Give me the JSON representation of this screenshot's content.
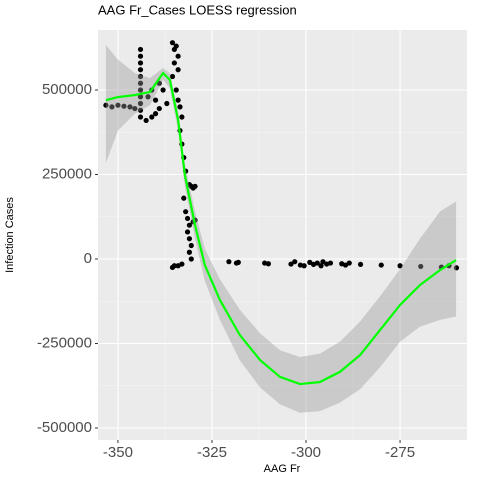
{
  "chart_data": {
    "type": "scatter",
    "title": "AAG Fr_Cases LOESS regression",
    "x_label": "AAG Fr",
    "y_label": "Infection Cases",
    "xlim": [
      -355.3,
      -257.2
    ],
    "ylim": [
      -535500,
      677500
    ],
    "xticks": [
      -350,
      -325,
      -300,
      -275
    ],
    "yticks": [
      -500000,
      -250000,
      0,
      250000,
      500000
    ],
    "grid": true,
    "points": {
      "color": "#000000",
      "x": [
        -353.2,
        -351.6,
        -350,
        -348.4,
        -346.8,
        -345.5,
        -344,
        -344,
        -344,
        -344,
        -344,
        -344,
        -344,
        -344,
        -344,
        -344,
        -344,
        -342.5,
        -341,
        -340,
        -339,
        -342,
        -341,
        -340,
        -339,
        -338,
        -337,
        -335.5,
        -335,
        -334.5,
        -334,
        -335,
        -334,
        -335.5,
        -334.5,
        -334,
        -333.5,
        -333,
        -333.5,
        -333,
        -332.5,
        -332,
        -331,
        -330.5,
        -330,
        -329.5,
        -332.5,
        -332,
        -331.5,
        -331,
        -330,
        -329.5,
        -331.5,
        -331,
        -330.5,
        -331,
        -330.5,
        -333,
        -334,
        -335.5,
        -335,
        -320.5,
        -318.5,
        -318,
        -311,
        -310,
        -304,
        -303,
        -301.5,
        -300.5,
        -299,
        -298,
        -297,
        -296,
        -295.5,
        -294.5,
        -293.5,
        -290.5,
        -289.5,
        -288.5,
        -285.5,
        -280,
        -275,
        -269.5,
        -264,
        -262,
        -260
      ],
      "y": [
        455000,
        450000,
        455000,
        452000,
        450000,
        445000,
        420000,
        440000,
        460000,
        480000,
        500000,
        520000,
        540000,
        560000,
        580000,
        600000,
        620000,
        410000,
        420000,
        430000,
        445000,
        480000,
        500000,
        470000,
        520000,
        500000,
        460000,
        640000,
        620000,
        630000,
        600000,
        580000,
        560000,
        540000,
        500000,
        470000,
        450000,
        420000,
        380000,
        340000,
        300000,
        260000,
        220000,
        215000,
        210000,
        215000,
        180000,
        140000,
        120000,
        100000,
        110000,
        115000,
        80000,
        60000,
        40000,
        20000,
        0,
        -15000,
        -20000,
        -25000,
        -20000,
        -8000,
        -12000,
        -10000,
        -12000,
        -14000,
        -15000,
        -8000,
        -18000,
        -20000,
        -10000,
        -16000,
        -12000,
        -20000,
        -8000,
        -15000,
        -12000,
        -14000,
        -18000,
        -12000,
        -16000,
        -18000,
        -20000,
        -22000,
        -24000,
        -20000,
        -26000
      ]
    },
    "loess": {
      "color": "#00ff00",
      "x": [
        -353.2,
        -350,
        -345.5,
        -341.5,
        -338,
        -336.2,
        -334,
        -332.2,
        -329.5,
        -326.9,
        -322.9,
        -317.6,
        -312.2,
        -306.9,
        -301.6,
        -296.3,
        -291,
        -285.6,
        -280.3,
        -275,
        -269.7,
        -264.4,
        -260.1
      ],
      "y": [
        470000,
        479000,
        485000,
        494000,
        550000,
        530000,
        411000,
        248000,
        100000,
        -18000,
        -121000,
        -225000,
        -299000,
        -349000,
        -370000,
        -364000,
        -334000,
        -284000,
        -210000,
        -136000,
        -77000,
        -33000,
        -3000
      ]
    },
    "band": {
      "color": "#999999",
      "x": [
        -353.2,
        -350,
        -345.5,
        -341.5,
        -338,
        -336.2,
        -334,
        -332.2,
        -329.5,
        -326.9,
        -322.9,
        -317.6,
        -312.2,
        -306.9,
        -301.6,
        -296.3,
        -291,
        -285.6,
        -280.3,
        -275,
        -269.7,
        -264.4,
        -260.1
      ],
      "upper": [
        633000,
        590000,
        550000,
        535000,
        565000,
        550000,
        440000,
        280000,
        140000,
        30000,
        -60000,
        -150000,
        -220000,
        -270000,
        -290000,
        -280000,
        -245000,
        -185000,
        -110000,
        -30000,
        60000,
        140000,
        170000
      ],
      "lower": [
        284000,
        380000,
        430000,
        455000,
        530000,
        505000,
        380000,
        215000,
        60000,
        -65000,
        -180000,
        -300000,
        -380000,
        -430000,
        -455000,
        -450000,
        -425000,
        -385000,
        -320000,
        -245000,
        -200000,
        -180000,
        -170000
      ]
    }
  }
}
